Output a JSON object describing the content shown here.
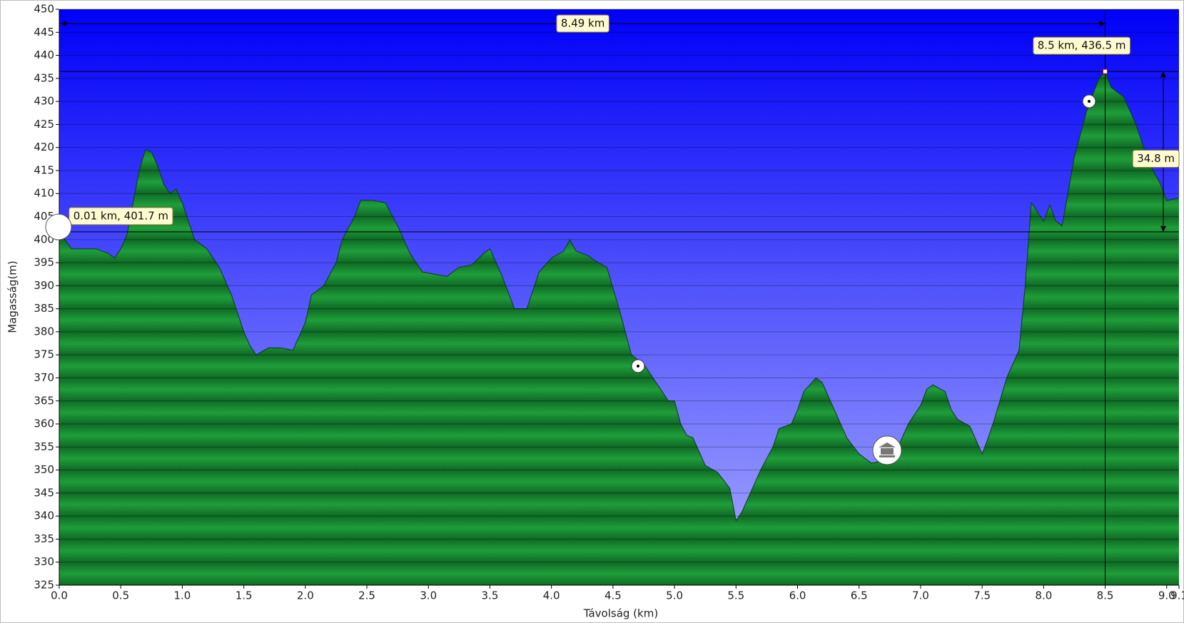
{
  "chart_data": {
    "type": "area",
    "xlabel": "Távolság   (km)",
    "ylabel": "Magasság(m)",
    "x": [
      0.0,
      0.1,
      0.2,
      0.3,
      0.4,
      0.45,
      0.5,
      0.55,
      0.6,
      0.65,
      0.7,
      0.75,
      0.8,
      0.85,
      0.9,
      0.95,
      1.0,
      1.05,
      1.1,
      1.2,
      1.3,
      1.4,
      1.5,
      1.55,
      1.6,
      1.7,
      1.8,
      1.9,
      2.0,
      2.05,
      2.15,
      2.25,
      2.3,
      2.4,
      2.45,
      2.55,
      2.65,
      2.75,
      2.85,
      2.95,
      3.05,
      3.15,
      3.25,
      3.35,
      3.45,
      3.5,
      3.6,
      3.7,
      3.8,
      3.9,
      4.0,
      4.1,
      4.15,
      4.2,
      4.3,
      4.35,
      4.45,
      4.55,
      4.65,
      4.75,
      4.85,
      4.95,
      5.0,
      5.05,
      5.1,
      5.15,
      5.25,
      5.35,
      5.45,
      5.5,
      5.55,
      5.6,
      5.7,
      5.8,
      5.85,
      5.95,
      6.0,
      6.05,
      6.15,
      6.2,
      6.3,
      6.4,
      6.5,
      6.6,
      6.7,
      6.8,
      6.9,
      7.0,
      7.05,
      7.1,
      7.2,
      7.25,
      7.3,
      7.4,
      7.5,
      7.55,
      7.6,
      7.7,
      7.8,
      7.85,
      7.9,
      8.0,
      8.05,
      8.1,
      8.15,
      8.25,
      8.3,
      8.35,
      8.45,
      8.5,
      8.55,
      8.65,
      8.75,
      8.85,
      8.95,
      9.0,
      9.1
    ],
    "values": [
      401.7,
      398,
      398,
      398,
      397,
      396,
      398,
      401,
      408,
      415,
      419.5,
      419,
      416,
      412,
      410,
      411,
      408,
      404,
      400,
      398,
      394,
      388,
      380,
      377,
      375,
      376.5,
      376.5,
      376,
      382,
      388,
      390,
      395,
      400,
      405,
      408.5,
      408.5,
      408,
      403,
      397,
      393,
      392.5,
      392,
      394,
      394.5,
      397,
      398,
      392,
      385,
      385,
      393,
      396,
      397.5,
      400,
      397.5,
      396.5,
      395.5,
      394,
      385,
      375,
      373,
      369,
      365,
      365,
      360,
      357.5,
      357,
      351,
      349.5,
      346,
      339,
      341,
      344,
      350,
      355,
      359,
      360,
      363,
      367,
      370,
      369,
      363,
      357,
      353.5,
      351.5,
      352,
      354,
      360,
      364,
      367.5,
      368.5,
      367,
      363,
      361,
      359.5,
      353.5,
      357,
      361,
      370,
      376,
      390,
      408,
      404,
      407.5,
      404,
      403,
      418,
      423,
      428,
      435,
      436.5,
      433,
      431,
      425,
      417,
      412,
      408.5,
      409
    ],
    "color": "#1f9e3a",
    "xlim": [
      0,
      9.1
    ],
    "ylim": [
      325,
      450
    ],
    "xticks": [
      {
        "value": 0,
        "label": "0.0"
      },
      0.5,
      {
        "value": 1,
        "label": "1.0"
      },
      1.5,
      {
        "value": 2,
        "label": "2.0"
      },
      2.5,
      {
        "value": 3,
        "label": "3.0"
      },
      3.5,
      {
        "value": 4,
        "label": "4.0"
      },
      4.5,
      {
        "value": 5,
        "label": "5.0"
      },
      5.5,
      {
        "value": 6,
        "label": "6.0"
      },
      6.5,
      {
        "value": 7,
        "label": "7.0"
      },
      7.5,
      {
        "value": 8,
        "label": "8.0"
      },
      8.5,
      {
        "value": 9,
        "label": "9.0"
      },
      9.1
    ],
    "yticks": [
      325,
      330,
      335,
      340,
      345,
      350,
      355,
      360,
      365,
      370,
      375,
      380,
      385,
      390,
      395,
      400,
      405,
      410,
      415,
      420,
      425,
      430,
      435,
      440,
      445,
      450
    ],
    "grid": true,
    "points": [
      {
        "x": 0.01,
        "y": 401.7,
        "label": "0.01 km, 401.7 m"
      },
      {
        "x": 8.5,
        "y": 436.5,
        "label": "8.5 km, 436.5 m"
      }
    ],
    "distance": {
      "value": 8.49,
      "label": "8.49 km"
    },
    "elevation_difference": {
      "value": 34.8,
      "label": "34.8 m"
    }
  }
}
